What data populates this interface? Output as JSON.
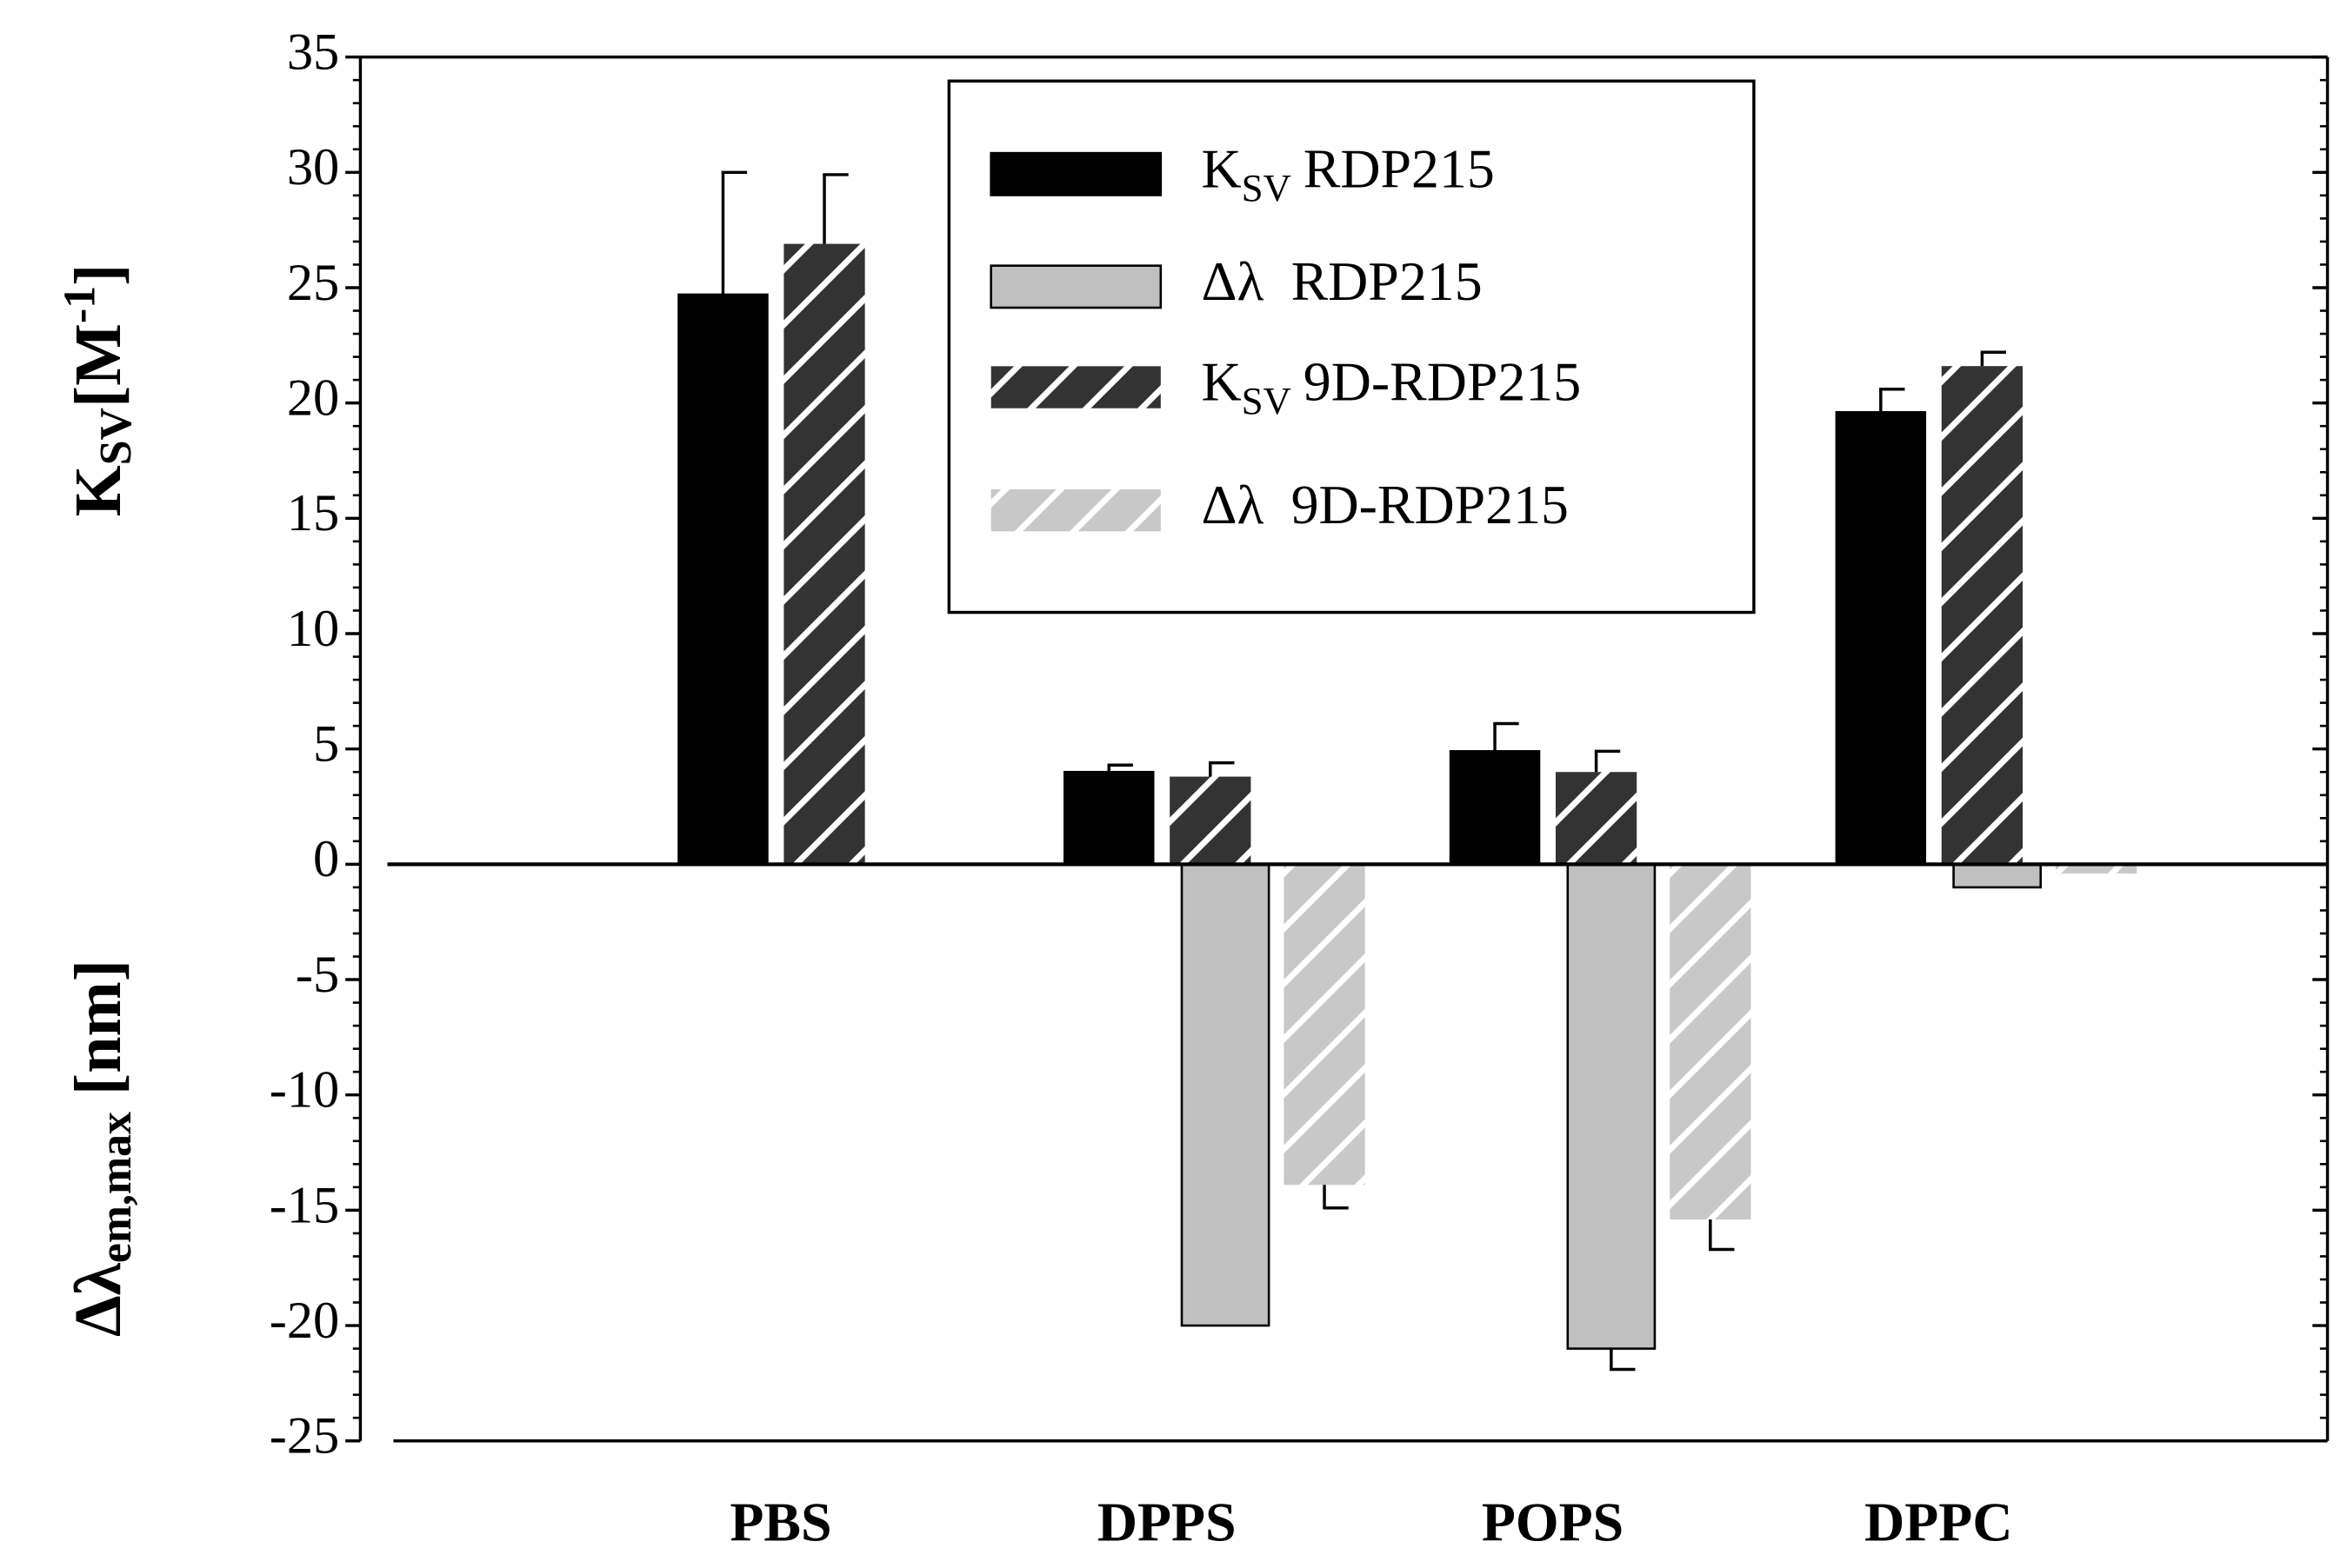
{
  "chart_data": {
    "type": "bar",
    "categories": [
      "PBS",
      "DPPS",
      "POPS",
      "DPPC"
    ],
    "ylabel_top": [
      "K",
      "SV",
      "[M",
      "-1",
      "]"
    ],
    "ylabel_bottom": [
      "Δλ",
      "em,max",
      " [nm]"
    ],
    "ylim": [
      -25,
      35
    ],
    "yticks": [
      -25,
      -20,
      -15,
      -10,
      -5,
      0,
      5,
      10,
      15,
      20,
      25,
      30,
      35
    ],
    "minor_yticks": [
      -24,
      -23,
      -22,
      -21,
      -19,
      -18,
      -17,
      -16,
      -14,
      -13,
      -12,
      -11,
      -9,
      -8,
      -7,
      -6,
      -4,
      -3,
      -2,
      -1,
      1,
      2,
      3,
      4,
      6,
      7,
      8,
      9,
      11,
      12,
      13,
      14,
      16,
      17,
      18,
      19,
      21,
      22,
      23,
      24,
      26,
      27,
      28,
      29,
      31,
      32,
      33,
      34
    ],
    "legend": "upper center",
    "series": [
      {
        "name": [
          "K",
          "SV",
          "RDP215"
        ],
        "color": "#000000",
        "pattern": "solid",
        "values": [
          24.7,
          4.0,
          4.9,
          19.6
        ],
        "errors": [
          5.3,
          0.3,
          1.2,
          1.0
        ]
      },
      {
        "name": [
          "Δλ",
          "RDP215"
        ],
        "color": "#c0c0c0",
        "pattern": "solid",
        "values": [
          null,
          -20.0,
          -21.0,
          -1.0
        ],
        "errors": [
          null,
          0,
          0.9,
          0
        ]
      },
      {
        "name": [
          "K",
          "SV",
          "9D-RDP215"
        ],
        "color": "#333333",
        "pattern": "hatch",
        "values": [
          26.9,
          3.8,
          4.0,
          21.6
        ],
        "errors": [
          3.0,
          0.6,
          0.9,
          0.6
        ]
      },
      {
        "name": [
          "Δλ",
          "9D-RDP215"
        ],
        "color": "#c8c8c8",
        "pattern": "hatch",
        "values": [
          null,
          -13.9,
          -15.4,
          -0.4
        ],
        "errors": [
          null,
          1.0,
          1.3,
          0
        ]
      }
    ]
  }
}
